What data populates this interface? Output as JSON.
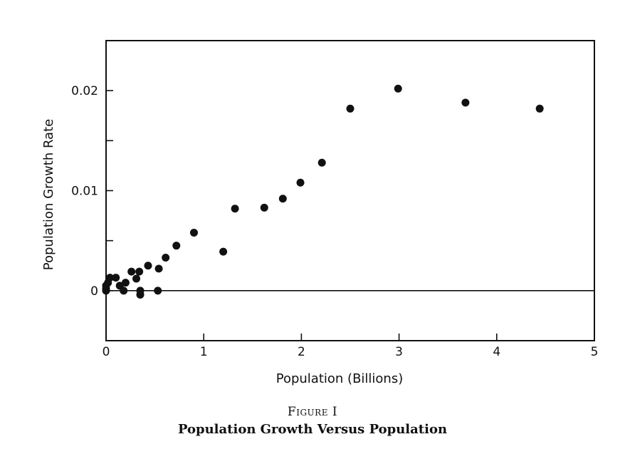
{
  "figure_label": "Figure I",
  "figure_title": "Population Growth Versus Population",
  "chart_data": {
    "type": "scatter",
    "title": "",
    "xlabel": "Population (Billions)",
    "ylabel": "Population Growth Rate",
    "xlim": [
      0,
      5
    ],
    "ylim": [
      -0.005,
      0.025
    ],
    "x_ticks": [
      0,
      1,
      2,
      3,
      4,
      5
    ],
    "x_tick_labels": [
      "0",
      "1",
      "2",
      "3",
      "4",
      "5"
    ],
    "y_ticks": [
      0,
      0.01,
      0.02
    ],
    "y_tick_labels": [
      "0",
      "0.01",
      "0.02"
    ],
    "y_minor_ticks": [
      -0.005,
      0.005,
      0.015
    ],
    "reference_line_y": 0,
    "grid": false,
    "marker_color": "#111111",
    "points": [
      {
        "x": 0.0,
        "y": 0.0
      },
      {
        "x": 0.0,
        "y": 0.0002
      },
      {
        "x": 0.0,
        "y": 0.0005
      },
      {
        "x": 0.02,
        "y": 0.0008
      },
      {
        "x": 0.04,
        "y": 0.0013
      },
      {
        "x": 0.1,
        "y": 0.0013
      },
      {
        "x": 0.14,
        "y": 0.0005
      },
      {
        "x": 0.18,
        "y": 0.0
      },
      {
        "x": 0.2,
        "y": 0.0008
      },
      {
        "x": 0.26,
        "y": 0.0019
      },
      {
        "x": 0.31,
        "y": 0.0012
      },
      {
        "x": 0.34,
        "y": 0.0019
      },
      {
        "x": 0.35,
        "y": -0.0004
      },
      {
        "x": 0.35,
        "y": 0.0
      },
      {
        "x": 0.43,
        "y": 0.0025
      },
      {
        "x": 0.53,
        "y": 0.0
      },
      {
        "x": 0.54,
        "y": 0.0022
      },
      {
        "x": 0.61,
        "y": 0.0033
      },
      {
        "x": 0.72,
        "y": 0.0045
      },
      {
        "x": 0.9,
        "y": 0.0058
      },
      {
        "x": 1.2,
        "y": 0.0039
      },
      {
        "x": 1.32,
        "y": 0.0082
      },
      {
        "x": 1.62,
        "y": 0.0083
      },
      {
        "x": 1.81,
        "y": 0.0092
      },
      {
        "x": 1.99,
        "y": 0.0108
      },
      {
        "x": 2.21,
        "y": 0.0128
      },
      {
        "x": 2.5,
        "y": 0.0182
      },
      {
        "x": 2.99,
        "y": 0.0202
      },
      {
        "x": 3.68,
        "y": 0.0188
      },
      {
        "x": 4.44,
        "y": 0.0182
      }
    ]
  }
}
